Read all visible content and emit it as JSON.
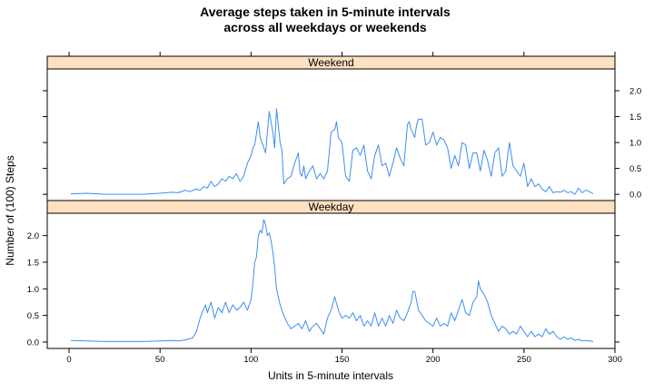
{
  "chart_data": {
    "type": "line",
    "title_line1": "Average steps taken in 5-minute intervals",
    "title_line2": "across all weekdays or weekends",
    "xlabel": "Units in 5-minute intervals",
    "ylabel": "Number of (100) Steps",
    "xlim": [
      -12,
      300
    ],
    "ylim": [
      -0.12,
      2.42
    ],
    "x_ticks": [
      0,
      50,
      100,
      150,
      200,
      250,
      300
    ],
    "y_ticks": [
      0.0,
      0.5,
      1.0,
      1.5,
      2.0
    ],
    "y_tick_labels": [
      "0.0",
      "0.5",
      "1.0",
      "1.5",
      "2.0"
    ],
    "line_color": "#3d8ef0",
    "strip_color": "#ffe0c0",
    "panels": [
      {
        "name": "Weekend",
        "tick_side": "right",
        "x": [
          1,
          10,
          20,
          30,
          40,
          50,
          56,
          60,
          64,
          66,
          70,
          72,
          74,
          76,
          78,
          80,
          82,
          84,
          86,
          88,
          90,
          92,
          94,
          96,
          98,
          100,
          101,
          102,
          104,
          105,
          106,
          108,
          109,
          110,
          112,
          113,
          114,
          116,
          117,
          118,
          120,
          122,
          124,
          126,
          127,
          128,
          129,
          130,
          132,
          134,
          136,
          138,
          140,
          142,
          144,
          146,
          147,
          148,
          150,
          152,
          154,
          156,
          158,
          160,
          162,
          164,
          166,
          168,
          170,
          172,
          174,
          176,
          178,
          180,
          182,
          184,
          186,
          187,
          188,
          190,
          191,
          192,
          194,
          196,
          198,
          200,
          202,
          204,
          206,
          208,
          210,
          212,
          214,
          216,
          218,
          220,
          222,
          224,
          226,
          228,
          230,
          232,
          234,
          236,
          238,
          240,
          242,
          244,
          246,
          248,
          250,
          252,
          254,
          256,
          258,
          260,
          262,
          264,
          266,
          268,
          270,
          272,
          274,
          276,
          278,
          280,
          282,
          284,
          286,
          288
        ],
        "y": [
          0.01,
          0.02,
          0.0,
          0.0,
          0.0,
          0.02,
          0.04,
          0.03,
          0.08,
          0.05,
          0.1,
          0.08,
          0.15,
          0.12,
          0.25,
          0.15,
          0.2,
          0.3,
          0.25,
          0.35,
          0.3,
          0.4,
          0.25,
          0.35,
          0.6,
          0.75,
          0.9,
          0.95,
          1.4,
          1.1,
          1.0,
          0.8,
          1.2,
          1.6,
          1.2,
          0.9,
          1.65,
          1.0,
          0.85,
          0.2,
          0.3,
          0.35,
          0.6,
          0.8,
          0.4,
          0.35,
          0.55,
          0.3,
          0.45,
          0.55,
          0.3,
          0.4,
          0.3,
          0.45,
          1.2,
          1.25,
          1.4,
          1.1,
          1.0,
          0.35,
          0.25,
          0.85,
          0.9,
          0.75,
          0.95,
          0.45,
          0.3,
          0.75,
          0.95,
          0.55,
          0.6,
          0.35,
          0.6,
          0.9,
          0.7,
          0.55,
          1.35,
          1.4,
          1.25,
          1.1,
          1.35,
          1.45,
          1.45,
          0.95,
          1.0,
          1.2,
          0.95,
          1.1,
          1.05,
          0.9,
          0.5,
          0.75,
          0.55,
          1.0,
          0.95,
          0.5,
          0.8,
          0.8,
          0.45,
          0.85,
          0.65,
          0.35,
          0.8,
          0.9,
          0.35,
          0.45,
          1.0,
          0.55,
          0.45,
          0.35,
          0.6,
          0.15,
          0.3,
          0.15,
          0.2,
          0.1,
          0.05,
          0.15,
          0.03,
          0.05,
          0.04,
          0.08,
          0.03,
          0.05,
          0.0,
          0.12,
          0.03,
          0.08,
          0.05,
          0.01
        ]
      },
      {
        "name": "Weekday",
        "tick_side": "left",
        "x": [
          1,
          10,
          20,
          30,
          40,
          50,
          56,
          60,
          64,
          66,
          68,
          70,
          72,
          73,
          75,
          76,
          78,
          80,
          82,
          84,
          86,
          88,
          90,
          92,
          94,
          96,
          98,
          100,
          101,
          102,
          103,
          104,
          105,
          106,
          107,
          108,
          109,
          110,
          111,
          112,
          113,
          114,
          116,
          118,
          120,
          122,
          124,
          126,
          128,
          130,
          132,
          134,
          136,
          138,
          140,
          142,
          144,
          146,
          148,
          150,
          152,
          154,
          156,
          158,
          160,
          162,
          164,
          166,
          168,
          170,
          172,
          174,
          176,
          178,
          180,
          182,
          184,
          186,
          188,
          189,
          190,
          192,
          194,
          196,
          198,
          200,
          202,
          204,
          206,
          208,
          210,
          212,
          214,
          216,
          218,
          220,
          222,
          224,
          225,
          226,
          228,
          230,
          232,
          234,
          236,
          238,
          240,
          242,
          244,
          246,
          248,
          250,
          252,
          254,
          256,
          258,
          260,
          262,
          264,
          266,
          268,
          270,
          272,
          274,
          276,
          278,
          280,
          282,
          284,
          286,
          288
        ],
        "y": [
          0.03,
          0.02,
          0.01,
          0.01,
          0.01,
          0.02,
          0.03,
          0.02,
          0.04,
          0.06,
          0.08,
          0.2,
          0.45,
          0.55,
          0.7,
          0.55,
          0.75,
          0.45,
          0.65,
          0.55,
          0.75,
          0.55,
          0.7,
          0.6,
          0.65,
          0.75,
          0.6,
          0.8,
          1.1,
          1.5,
          1.6,
          2.0,
          2.1,
          2.05,
          2.3,
          2.2,
          2.0,
          2.05,
          1.9,
          1.7,
          1.4,
          1.0,
          0.7,
          0.5,
          0.35,
          0.25,
          0.3,
          0.35,
          0.25,
          0.4,
          0.2,
          0.3,
          0.35,
          0.25,
          0.15,
          0.45,
          0.6,
          0.85,
          0.6,
          0.45,
          0.5,
          0.45,
          0.55,
          0.4,
          0.5,
          0.3,
          0.4,
          0.3,
          0.55,
          0.3,
          0.45,
          0.3,
          0.5,
          0.35,
          0.6,
          0.45,
          0.4,
          0.55,
          0.75,
          0.95,
          0.95,
          0.6,
          0.5,
          0.4,
          0.35,
          0.3,
          0.45,
          0.3,
          0.35,
          0.3,
          0.55,
          0.4,
          0.6,
          0.8,
          0.55,
          0.5,
          0.75,
          0.85,
          1.15,
          1.0,
          0.9,
          0.75,
          0.5,
          0.35,
          0.2,
          0.3,
          0.25,
          0.15,
          0.2,
          0.15,
          0.3,
          0.2,
          0.1,
          0.2,
          0.1,
          0.15,
          0.1,
          0.25,
          0.15,
          0.2,
          0.1,
          0.05,
          0.1,
          0.05,
          0.08,
          0.03,
          0.05,
          0.02,
          0.03,
          0.02,
          0.01
        ]
      }
    ]
  }
}
